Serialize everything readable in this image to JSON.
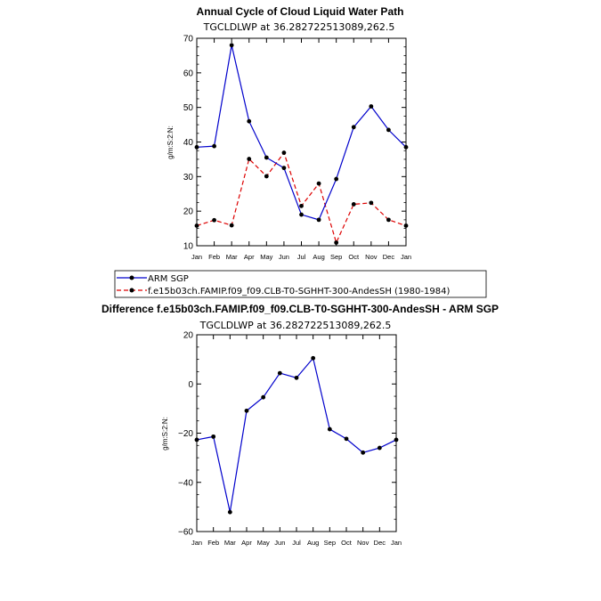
{
  "chart_data": [
    {
      "type": "line",
      "title": "Annual Cycle of Cloud Liquid Water Path",
      "subtitle": "TGCLDLWP  at  36.282722513089,262.5",
      "ylabel": "g/m:S:2:N:",
      "xlabel": "",
      "ylim": [
        10,
        70
      ],
      "yticks": [
        10,
        20,
        30,
        40,
        50,
        60,
        70
      ],
      "categories": [
        "Jan",
        "Feb",
        "Mar",
        "Apr",
        "May",
        "Jun",
        "Jul",
        "Aug",
        "Sep",
        "Oct",
        "Nov",
        "Dec",
        "Jan"
      ],
      "series": [
        {
          "name": "ARM SGP",
          "color": "#0000cc",
          "dash": "solid",
          "values": [
            38.5,
            38.8,
            68.0,
            46.0,
            35.5,
            32.5,
            19.0,
            17.5,
            29.3,
            44.3,
            50.3,
            43.5,
            38.5
          ]
        },
        {
          "name": "f.e15b03ch.FAMIP.f09_f09.CLB-T0-SGHHT-300-AndesSH (1980-1984)",
          "color": "#dd0000",
          "dash": "dashed",
          "values": [
            15.8,
            17.4,
            15.9,
            35.1,
            30.1,
            36.9,
            21.5,
            28.0,
            10.9,
            22.0,
            22.4,
            17.5,
            15.8
          ]
        }
      ],
      "legend": {
        "position": "bottom",
        "entries": [
          "ARM SGP",
          "f.e15b03ch.FAMIP.f09_f09.CLB-T0-SGHHT-300-AndesSH (1980-1984)"
        ]
      }
    },
    {
      "type": "line",
      "title": "Difference f.e15b03ch.FAMIP.f09_f09.CLB-T0-SGHHT-300-AndesSH - ARM SGP",
      "subtitle": "TGCLDLWP  at  36.282722513089,262.5",
      "ylabel": "g/m:S:2:N:",
      "xlabel": "",
      "ylim": [
        -60,
        20
      ],
      "yticks": [
        -60,
        -40,
        -20,
        0,
        20
      ],
      "categories": [
        "Jan",
        "Feb",
        "Mar",
        "Apr",
        "May",
        "Jun",
        "Jul",
        "Aug",
        "Sep",
        "Oct",
        "Nov",
        "Dec",
        "Jan"
      ],
      "series": [
        {
          "name": "Difference",
          "color": "#0000cc",
          "dash": "solid",
          "values": [
            -22.7,
            -21.4,
            -52.1,
            -10.9,
            -5.4,
            4.4,
            2.5,
            10.5,
            -18.4,
            -22.3,
            -27.9,
            -26.0,
            -22.7
          ]
        }
      ]
    }
  ]
}
